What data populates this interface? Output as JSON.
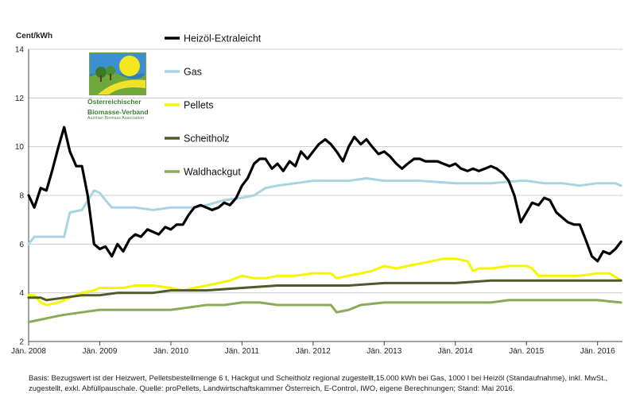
{
  "chart_data": {
    "type": "line",
    "ylabel": "Cent/kWh",
    "ylim": [
      2,
      14
    ],
    "yticks": [
      "2",
      "4",
      "6",
      "8",
      "10",
      "12",
      "14"
    ],
    "xlim": [
      2008.0,
      2016.35
    ],
    "xticks": [
      {
        "value": 2008,
        "label": "Jän. 2008"
      },
      {
        "value": 2009,
        "label": "Jän. 2009"
      },
      {
        "value": 2010,
        "label": "Jän. 2010"
      },
      {
        "value": 2011,
        "label": "Jän. 2011"
      },
      {
        "value": 2012,
        "label": "Jän. 2012"
      },
      {
        "value": 2013,
        "label": "Jän. 2013"
      },
      {
        "value": 2014,
        "label": "Jän. 2014"
      },
      {
        "value": 2015,
        "label": "Jän. 2015"
      },
      {
        "value": 2016,
        "label": "Jän. 2016"
      }
    ],
    "grid": "horizontal",
    "legend_position": "top-center",
    "series": [
      {
        "name": "Heizöl-Extraleicht",
        "color": "#000000",
        "points": [
          [
            2008.0,
            8.0
          ],
          [
            2008.08,
            7.5
          ],
          [
            2008.17,
            8.3
          ],
          [
            2008.25,
            8.2
          ],
          [
            2008.33,
            9.0
          ],
          [
            2008.42,
            10.0
          ],
          [
            2008.5,
            10.8
          ],
          [
            2008.58,
            9.8
          ],
          [
            2008.67,
            9.2
          ],
          [
            2008.75,
            9.2
          ],
          [
            2008.83,
            8.0
          ],
          [
            2008.92,
            6.0
          ],
          [
            2009.0,
            5.8
          ],
          [
            2009.08,
            5.9
          ],
          [
            2009.17,
            5.5
          ],
          [
            2009.25,
            6.0
          ],
          [
            2009.33,
            5.7
          ],
          [
            2009.42,
            6.2
          ],
          [
            2009.5,
            6.4
          ],
          [
            2009.58,
            6.3
          ],
          [
            2009.67,
            6.6
          ],
          [
            2009.75,
            6.5
          ],
          [
            2009.83,
            6.4
          ],
          [
            2009.92,
            6.7
          ],
          [
            2010.0,
            6.6
          ],
          [
            2010.08,
            6.8
          ],
          [
            2010.17,
            6.8
          ],
          [
            2010.25,
            7.2
          ],
          [
            2010.33,
            7.5
          ],
          [
            2010.42,
            7.6
          ],
          [
            2010.5,
            7.5
          ],
          [
            2010.58,
            7.4
          ],
          [
            2010.67,
            7.5
          ],
          [
            2010.75,
            7.7
          ],
          [
            2010.83,
            7.6
          ],
          [
            2010.92,
            7.9
          ],
          [
            2011.0,
            8.4
          ],
          [
            2011.08,
            8.7
          ],
          [
            2011.17,
            9.3
          ],
          [
            2011.25,
            9.5
          ],
          [
            2011.33,
            9.5
          ],
          [
            2011.42,
            9.1
          ],
          [
            2011.5,
            9.3
          ],
          [
            2011.58,
            9.0
          ],
          [
            2011.67,
            9.4
          ],
          [
            2011.75,
            9.2
          ],
          [
            2011.83,
            9.8
          ],
          [
            2011.92,
            9.5
          ],
          [
            2012.0,
            9.8
          ],
          [
            2012.08,
            10.1
          ],
          [
            2012.17,
            10.3
          ],
          [
            2012.25,
            10.1
          ],
          [
            2012.33,
            9.8
          ],
          [
            2012.42,
            9.4
          ],
          [
            2012.5,
            10.0
          ],
          [
            2012.58,
            10.4
          ],
          [
            2012.67,
            10.1
          ],
          [
            2012.75,
            10.3
          ],
          [
            2012.83,
            10.0
          ],
          [
            2012.92,
            9.7
          ],
          [
            2013.0,
            9.8
          ],
          [
            2013.08,
            9.6
          ],
          [
            2013.17,
            9.3
          ],
          [
            2013.25,
            9.1
          ],
          [
            2013.33,
            9.3
          ],
          [
            2013.42,
            9.5
          ],
          [
            2013.5,
            9.5
          ],
          [
            2013.58,
            9.4
          ],
          [
            2013.67,
            9.4
          ],
          [
            2013.75,
            9.4
          ],
          [
            2013.83,
            9.3
          ],
          [
            2013.92,
            9.2
          ],
          [
            2014.0,
            9.3
          ],
          [
            2014.08,
            9.1
          ],
          [
            2014.17,
            9.0
          ],
          [
            2014.25,
            9.1
          ],
          [
            2014.33,
            9.0
          ],
          [
            2014.42,
            9.1
          ],
          [
            2014.5,
            9.2
          ],
          [
            2014.58,
            9.1
          ],
          [
            2014.67,
            8.9
          ],
          [
            2014.75,
            8.6
          ],
          [
            2014.83,
            8.0
          ],
          [
            2014.92,
            6.9
          ],
          [
            2015.0,
            7.3
          ],
          [
            2015.08,
            7.7
          ],
          [
            2015.17,
            7.6
          ],
          [
            2015.25,
            7.9
          ],
          [
            2015.33,
            7.8
          ],
          [
            2015.42,
            7.3
          ],
          [
            2015.5,
            7.1
          ],
          [
            2015.58,
            6.9
          ],
          [
            2015.67,
            6.8
          ],
          [
            2015.75,
            6.8
          ],
          [
            2015.83,
            6.2
          ],
          [
            2015.92,
            5.5
          ],
          [
            2016.0,
            5.3
          ],
          [
            2016.08,
            5.7
          ],
          [
            2016.17,
            5.6
          ],
          [
            2016.25,
            5.8
          ],
          [
            2016.33,
            6.1
          ]
        ]
      },
      {
        "name": "Gas",
        "color": "#a8d4e0",
        "points": [
          [
            2008.0,
            6.0
          ],
          [
            2008.08,
            6.3
          ],
          [
            2008.5,
            6.3
          ],
          [
            2008.58,
            7.3
          ],
          [
            2008.75,
            7.4
          ],
          [
            2008.92,
            8.2
          ],
          [
            2009.0,
            8.1
          ],
          [
            2009.08,
            7.8
          ],
          [
            2009.17,
            7.5
          ],
          [
            2009.5,
            7.5
          ],
          [
            2009.75,
            7.4
          ],
          [
            2010.0,
            7.5
          ],
          [
            2010.33,
            7.5
          ],
          [
            2010.5,
            7.6
          ],
          [
            2010.75,
            7.8
          ],
          [
            2011.0,
            7.9
          ],
          [
            2011.17,
            8.0
          ],
          [
            2011.33,
            8.3
          ],
          [
            2011.5,
            8.4
          ],
          [
            2011.75,
            8.5
          ],
          [
            2012.0,
            8.6
          ],
          [
            2012.5,
            8.6
          ],
          [
            2012.75,
            8.7
          ],
          [
            2013.0,
            8.6
          ],
          [
            2013.5,
            8.6
          ],
          [
            2014.0,
            8.5
          ],
          [
            2014.5,
            8.5
          ],
          [
            2014.92,
            8.6
          ],
          [
            2015.0,
            8.6
          ],
          [
            2015.25,
            8.5
          ],
          [
            2015.5,
            8.5
          ],
          [
            2015.75,
            8.4
          ],
          [
            2016.0,
            8.5
          ],
          [
            2016.25,
            8.5
          ],
          [
            2016.33,
            8.4
          ]
        ]
      },
      {
        "name": "Pellets",
        "color": "#f5f500",
        "points": [
          [
            2008.0,
            3.9
          ],
          [
            2008.08,
            3.9
          ],
          [
            2008.17,
            3.6
          ],
          [
            2008.25,
            3.5
          ],
          [
            2008.42,
            3.6
          ],
          [
            2008.58,
            3.8
          ],
          [
            2008.75,
            4.0
          ],
          [
            2008.92,
            4.1
          ],
          [
            2009.0,
            4.2
          ],
          [
            2009.17,
            4.2
          ],
          [
            2009.33,
            4.2
          ],
          [
            2009.5,
            4.3
          ],
          [
            2009.75,
            4.3
          ],
          [
            2010.0,
            4.2
          ],
          [
            2010.17,
            4.1
          ],
          [
            2010.33,
            4.2
          ],
          [
            2010.5,
            4.3
          ],
          [
            2010.67,
            4.4
          ],
          [
            2010.83,
            4.5
          ],
          [
            2011.0,
            4.7
          ],
          [
            2011.17,
            4.6
          ],
          [
            2011.33,
            4.6
          ],
          [
            2011.5,
            4.7
          ],
          [
            2011.75,
            4.7
          ],
          [
            2012.0,
            4.8
          ],
          [
            2012.25,
            4.8
          ],
          [
            2012.33,
            4.6
          ],
          [
            2012.5,
            4.7
          ],
          [
            2012.67,
            4.8
          ],
          [
            2012.83,
            4.9
          ],
          [
            2013.0,
            5.1
          ],
          [
            2013.17,
            5.0
          ],
          [
            2013.33,
            5.1
          ],
          [
            2013.5,
            5.2
          ],
          [
            2013.67,
            5.3
          ],
          [
            2013.83,
            5.4
          ],
          [
            2014.0,
            5.4
          ],
          [
            2014.17,
            5.3
          ],
          [
            2014.25,
            4.9
          ],
          [
            2014.33,
            5.0
          ],
          [
            2014.5,
            5.0
          ],
          [
            2014.75,
            5.1
          ],
          [
            2015.0,
            5.1
          ],
          [
            2015.08,
            5.0
          ],
          [
            2015.17,
            4.7
          ],
          [
            2015.5,
            4.7
          ],
          [
            2015.75,
            4.7
          ],
          [
            2016.0,
            4.8
          ],
          [
            2016.17,
            4.8
          ],
          [
            2016.33,
            4.5
          ]
        ]
      },
      {
        "name": "Scheitholz",
        "color": "#4f5a2a",
        "points": [
          [
            2008.0,
            3.8
          ],
          [
            2008.17,
            3.8
          ],
          [
            2008.25,
            3.7
          ],
          [
            2008.5,
            3.8
          ],
          [
            2008.75,
            3.9
          ],
          [
            2009.0,
            3.9
          ],
          [
            2009.25,
            4.0
          ],
          [
            2009.5,
            4.0
          ],
          [
            2009.75,
            4.0
          ],
          [
            2010.0,
            4.1
          ],
          [
            2010.5,
            4.1
          ],
          [
            2011.0,
            4.2
          ],
          [
            2011.5,
            4.3
          ],
          [
            2012.0,
            4.3
          ],
          [
            2012.5,
            4.3
          ],
          [
            2013.0,
            4.4
          ],
          [
            2013.5,
            4.4
          ],
          [
            2014.0,
            4.4
          ],
          [
            2014.5,
            4.5
          ],
          [
            2015.0,
            4.5
          ],
          [
            2015.5,
            4.5
          ],
          [
            2016.0,
            4.5
          ],
          [
            2016.33,
            4.5
          ]
        ]
      },
      {
        "name": "Waldhackgut",
        "color": "#8aaa58",
        "points": [
          [
            2008.0,
            2.8
          ],
          [
            2008.17,
            2.9
          ],
          [
            2008.33,
            3.0
          ],
          [
            2008.5,
            3.1
          ],
          [
            2008.75,
            3.2
          ],
          [
            2009.0,
            3.3
          ],
          [
            2009.5,
            3.3
          ],
          [
            2010.0,
            3.3
          ],
          [
            2010.25,
            3.4
          ],
          [
            2010.5,
            3.5
          ],
          [
            2010.75,
            3.5
          ],
          [
            2011.0,
            3.6
          ],
          [
            2011.25,
            3.6
          ],
          [
            2011.5,
            3.5
          ],
          [
            2012.0,
            3.5
          ],
          [
            2012.25,
            3.5
          ],
          [
            2012.33,
            3.2
          ],
          [
            2012.5,
            3.3
          ],
          [
            2012.67,
            3.5
          ],
          [
            2013.0,
            3.6
          ],
          [
            2013.5,
            3.6
          ],
          [
            2014.0,
            3.6
          ],
          [
            2014.5,
            3.6
          ],
          [
            2014.75,
            3.7
          ],
          [
            2015.0,
            3.7
          ],
          [
            2015.5,
            3.7
          ],
          [
            2016.0,
            3.7
          ],
          [
            2016.33,
            3.6
          ]
        ]
      }
    ]
  },
  "logo": {
    "line1": "Österreichischer",
    "line2": "Biomasse-Verband",
    "line3": "Austrian Biomass Association"
  },
  "footnote": "Basis: Bezugswert ist der Heizwert, Pelletsbestellmenge 6 t, Hackgut und Scheitholz regional zugestellt,15.000 kWh bei Gas, 1000 l bei Heizöl (Standaufnahme), inkl. MwSt., zugestellt, exkl. Abfüllpauschale. Quelle: proPellets, Landwirtschaftskammer Österreich, E-Control, IWO, eigene Berechnungen; Stand: Mai 2016."
}
